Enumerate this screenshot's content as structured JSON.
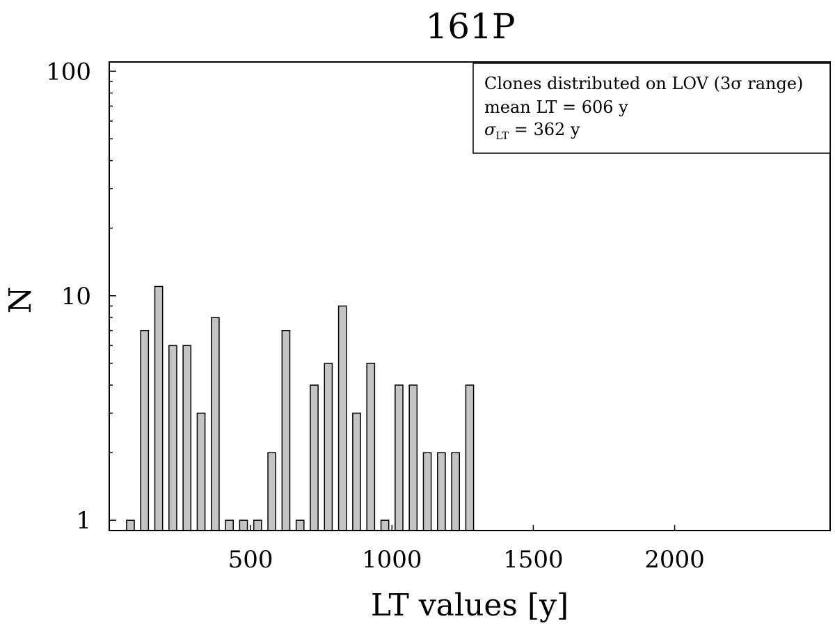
{
  "chart_data": {
    "type": "bar",
    "title": "161P",
    "xlabel": "LT values [y]",
    "ylabel": "N",
    "yscale": "log",
    "xlim": [
      0,
      2550
    ],
    "ylim": [
      0.9,
      110
    ],
    "bin_width": 50,
    "xticks": [
      500,
      1000,
      1500,
      2000
    ],
    "yticks": [
      1,
      10,
      100
    ],
    "bins": [
      {
        "x": 75,
        "count": 1
      },
      {
        "x": 125,
        "count": 7
      },
      {
        "x": 175,
        "count": 11
      },
      {
        "x": 225,
        "count": 6
      },
      {
        "x": 275,
        "count": 6
      },
      {
        "x": 325,
        "count": 3
      },
      {
        "x": 375,
        "count": 8
      },
      {
        "x": 425,
        "count": 1
      },
      {
        "x": 475,
        "count": 1
      },
      {
        "x": 525,
        "count": 1
      },
      {
        "x": 575,
        "count": 2
      },
      {
        "x": 625,
        "count": 7
      },
      {
        "x": 675,
        "count": 1
      },
      {
        "x": 725,
        "count": 4
      },
      {
        "x": 775,
        "count": 5
      },
      {
        "x": 825,
        "count": 9
      },
      {
        "x": 875,
        "count": 3
      },
      {
        "x": 925,
        "count": 5
      },
      {
        "x": 975,
        "count": 1
      },
      {
        "x": 1025,
        "count": 4
      },
      {
        "x": 1075,
        "count": 4
      },
      {
        "x": 1125,
        "count": 2
      },
      {
        "x": 1175,
        "count": 2
      },
      {
        "x": 1225,
        "count": 2
      },
      {
        "x": 1275,
        "count": 4
      }
    ],
    "legend": {
      "position": "top-right",
      "line1": "Clones distributed on LOV (3σ range)",
      "line2": "mean LT = 606 y",
      "line3_sym": "σ",
      "line3_sub": "LT",
      "line3_rest": " = 362 y"
    },
    "colors": {
      "bar_fill": "#c4c4c4",
      "bar_edge": "#000000"
    }
  }
}
